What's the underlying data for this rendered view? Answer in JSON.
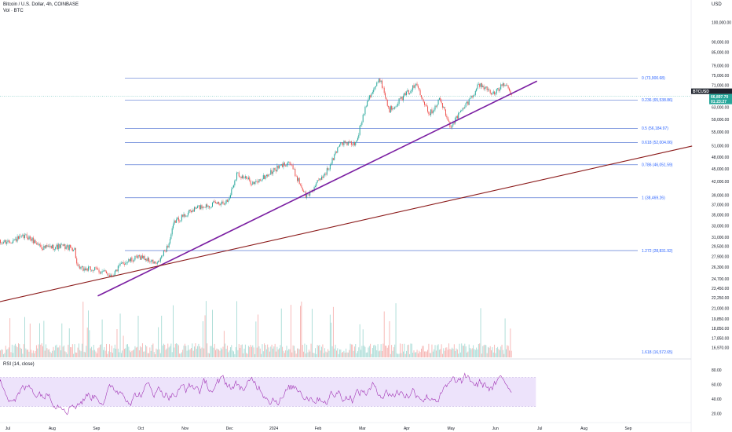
{
  "header": {
    "title": "Bitcoin / U.S. Dollar, 4h, COINBASE",
    "volume_label": "Vol · BTC",
    "currency": "USD"
  },
  "rsi": {
    "label": "RSI (14, close)"
  },
  "price_tag": {
    "symbol": "BTCUSD",
    "price": "66,897.70",
    "countdown": "01:23:27"
  },
  "colors": {
    "fib": "#5b7bd5",
    "trend_purple": "#7b1fa2",
    "trend_maroon": "#8b1a1a",
    "candle_up": "#26a69a",
    "candle_down": "#ef5350",
    "rsi_line": "#9c27b0",
    "rsi_band": "#ede3fb",
    "tag": "#26a69a"
  },
  "chart_data": {
    "type": "candlestick",
    "title": "Bitcoin / U.S. Dollar, 4h, COINBASE",
    "y_scale": "log",
    "ylim": [
      16300,
      103000
    ],
    "x_ticks": [
      "Jul",
      "Aug",
      "Sep",
      "Oct",
      "Nov",
      "Dec",
      "2024",
      "Feb",
      "Mar",
      "Apr",
      "May",
      "Jun",
      "Jul",
      "Aug",
      "Sep"
    ],
    "y_ticks": [
      "100,000.00",
      "90,000.00",
      "85,000.00",
      "79,000.00",
      "75,000.00",
      "71,000.00",
      "63,000.00",
      "59,000.00",
      "55,000.00",
      "51,000.00",
      "48,000.00",
      "45,000.00",
      "42,000.00",
      "39,000.00",
      "37,000.00",
      "35,000.00",
      "33,000.00",
      "31,000.00",
      "29,500.00",
      "27,900.00",
      "26,300.00",
      "24,700.00",
      "23,450.00",
      "22,250.00",
      "21,000.00",
      "19,850.00",
      "18,850.00",
      "17,850.00",
      "16,970.00"
    ],
    "fib_levels": [
      {
        "label": "0 (73,900.68)",
        "value": 73900.68
      },
      {
        "label": "0.236 (65,538.86)",
        "value": 65538.86
      },
      {
        "label": "0.5 (56,184.97)",
        "value": 56184.97
      },
      {
        "label": "0.618 (52,004.06)",
        "value": 52004.06
      },
      {
        "label": "0.786 (46,051.59)",
        "value": 46051.59
      },
      {
        "label": "1 (38,469.26)",
        "value": 38469.26
      },
      {
        "label": "1.272 (28,831.92)",
        "value": 28831.92
      },
      {
        "label": "1.618 (16,572.65)",
        "value": 16572.65
      }
    ],
    "price_path": [
      {
        "date": "2023-06-20",
        "price": 29900
      },
      {
        "date": "2023-07-05",
        "price": 30500
      },
      {
        "date": "2023-07-14",
        "price": 31200
      },
      {
        "date": "2023-07-25",
        "price": 29300
      },
      {
        "date": "2023-08-08",
        "price": 29500
      },
      {
        "date": "2023-08-16",
        "price": 29100
      },
      {
        "date": "2023-08-18",
        "price": 26100
      },
      {
        "date": "2023-08-30",
        "price": 26000
      },
      {
        "date": "2023-09-11",
        "price": 25200
      },
      {
        "date": "2023-09-18",
        "price": 26900
      },
      {
        "date": "2023-10-01",
        "price": 27900
      },
      {
        "date": "2023-10-12",
        "price": 26700
      },
      {
        "date": "2023-10-20",
        "price": 29900
      },
      {
        "date": "2023-10-24",
        "price": 33800
      },
      {
        "date": "2023-11-09",
        "price": 36500
      },
      {
        "date": "2023-11-30",
        "price": 37800
      },
      {
        "date": "2023-12-06",
        "price": 44000
      },
      {
        "date": "2023-12-18",
        "price": 41500
      },
      {
        "date": "2024-01-02",
        "price": 45000
      },
      {
        "date": "2024-01-11",
        "price": 46900
      },
      {
        "date": "2024-01-23",
        "price": 38600
      },
      {
        "date": "2024-02-08",
        "price": 45500
      },
      {
        "date": "2024-02-15",
        "price": 52000
      },
      {
        "date": "2024-02-26",
        "price": 51500
      },
      {
        "date": "2024-03-05",
        "price": 66000
      },
      {
        "date": "2024-03-14",
        "price": 73600
      },
      {
        "date": "2024-03-20",
        "price": 62000
      },
      {
        "date": "2024-04-08",
        "price": 71500
      },
      {
        "date": "2024-04-17",
        "price": 60800
      },
      {
        "date": "2024-04-24",
        "price": 66000
      },
      {
        "date": "2024-05-01",
        "price": 56700
      },
      {
        "date": "2024-05-15",
        "price": 66000
      },
      {
        "date": "2024-05-21",
        "price": 71500
      },
      {
        "date": "2024-06-01",
        "price": 67800
      },
      {
        "date": "2024-06-07",
        "price": 71900
      },
      {
        "date": "2024-06-13",
        "price": 66897.7
      }
    ],
    "trendlines": [
      {
        "name": "",
        "color": "#7b1fa2",
        "from": {
          "date": "2023-09-01",
          "price": 22500
        },
        "to": {
          "date": "2024-06-30",
          "price": 72700
        }
      },
      {
        "name": "",
        "color": "#8b1a1a",
        "from": {
          "date": "2023-06-20",
          "price": 21600
        },
        "to": {
          "date": "2024-10-15",
          "price": 51000
        }
      }
    ],
    "rsi_ticks": [
      "80.00",
      "60.00",
      "40.00",
      "20.00"
    ],
    "rsi_band": [
      30,
      70
    ]
  }
}
